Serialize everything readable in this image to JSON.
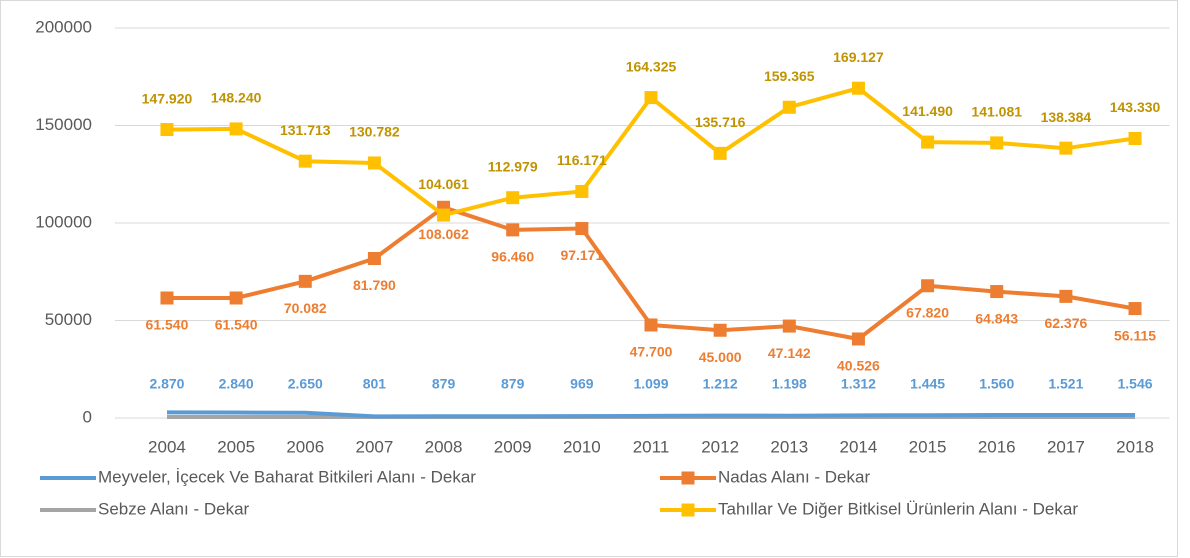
{
  "chart_data": {
    "type": "line",
    "categories": [
      "2004",
      "2005",
      "2006",
      "2007",
      "2008",
      "2009",
      "2010",
      "2011",
      "2012",
      "2013",
      "2014",
      "2015",
      "2016",
      "2017",
      "2018"
    ],
    "series": [
      {
        "name": "Meyveler, İçecek Ve Baharat Bitkileri Alanı - Dekar",
        "color": "#5b9bd5",
        "values": [
          2870,
          2840,
          2650,
          801,
          879,
          879,
          969,
          1099,
          1212,
          1198,
          1312,
          1445,
          1560,
          1521,
          1546
        ],
        "value_labels": [
          "2.870",
          "2.840",
          "2.650",
          "801",
          "879",
          "879",
          "969",
          "1.099",
          "1.212",
          "1.198",
          "1.312",
          "1.445",
          "1.560",
          "1.521",
          "1.546"
        ]
      },
      {
        "name": "Nadas Alanı - Dekar",
        "color": "#ed7d31",
        "marker": "square",
        "values": [
          61540,
          61540,
          70082,
          81790,
          108062,
          96460,
          97171,
          47700,
          45000,
          47142,
          40526,
          67820,
          64843,
          62376,
          56115
        ],
        "value_labels": [
          "61.540",
          "61.540",
          "70.082",
          "81.790",
          "108.062",
          "96.460",
          "97.171",
          "47.700",
          "45.000",
          "47.142",
          "40.526",
          "67.820",
          "64.843",
          "62.376",
          "56.115"
        ]
      },
      {
        "name": "Sebze Alanı - Dekar",
        "color": "#a5a5a5",
        "values": [
          500,
          500,
          500,
          500,
          500,
          500,
          500,
          500,
          500,
          500,
          500,
          500,
          500,
          500,
          500
        ]
      },
      {
        "name": "Tahıllar Ve Diğer Bitkisel Ürünlerin Alanı - Dekar",
        "color": "#ffc000",
        "marker": "square",
        "values": [
          147920,
          148240,
          131713,
          130782,
          104061,
          112979,
          116171,
          164325,
          135716,
          159365,
          169127,
          141490,
          141081,
          138384,
          143330
        ],
        "value_labels": [
          "147.920",
          "148.240",
          "131.713",
          "130.782",
          "104.061",
          "112.979",
          "116.171",
          "164.325",
          "135.716",
          "159.365",
          "169.127",
          "141.490",
          "141.081",
          "138.384",
          "143.330"
        ]
      }
    ],
    "ylim": [
      0,
      200000
    ],
    "yticks": [
      0,
      50000,
      100000,
      150000,
      200000
    ],
    "grid": true
  }
}
